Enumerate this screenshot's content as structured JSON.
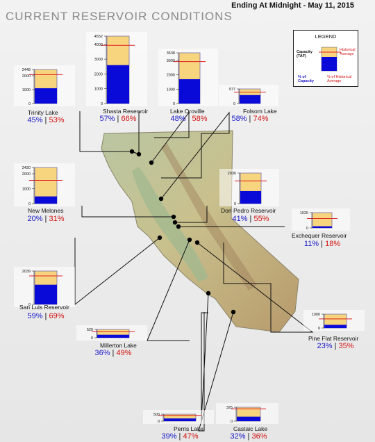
{
  "header": {
    "date_line": "Ending At Midnight - May 11, 2015",
    "title": "CURRENT RESERVOIR CONDITIONS"
  },
  "legend": {
    "title": "LEGEND",
    "capacity_label": "Capacity (TAF)",
    "historical_label": "Historical Average",
    "pct_capacity_label": "% of Capacity",
    "pct_historical_label": "% of Historical Average"
  },
  "colors": {
    "current": "#0a0ad8",
    "capacity": "#f7d57e",
    "historical_line": "#e02020",
    "capacity_text": "#1515c8",
    "historical_text": "#d21010"
  },
  "chart_data": {
    "type": "bar",
    "title": "CURRENT RESERVOIR CONDITIONS",
    "subtitle": "Ending At Midnight - May 11, 2015",
    "reservoirs": [
      {
        "name": "Trinity Lake",
        "capacity": 2448,
        "pct_capacity": 45,
        "pct_historical": 53,
        "ticks": [
          "2448",
          "2000",
          "1000",
          "0"
        ]
      },
      {
        "name": "Shasta Reservoir",
        "capacity": 4552,
        "pct_capacity": 57,
        "pct_historical": 66,
        "ticks": [
          "4552",
          "4000",
          "3000",
          "2000",
          "1000",
          "0"
        ]
      },
      {
        "name": "Lake Oroville",
        "capacity": 3538,
        "pct_capacity": 48,
        "pct_historical": 58,
        "ticks": [
          "3538",
          "3000",
          "2000",
          "1000",
          "0"
        ]
      },
      {
        "name": "Folsom Lake",
        "capacity": 977,
        "pct_capacity": 58,
        "pct_historical": 74,
        "ticks": [
          "977",
          "0"
        ]
      },
      {
        "name": "New Melones",
        "capacity": 2420,
        "pct_capacity": 20,
        "pct_historical": 31,
        "ticks": [
          "2420",
          "2000",
          "1000",
          "0"
        ]
      },
      {
        "name": "Don Pedro Reservoir",
        "capacity": 2030,
        "pct_capacity": 41,
        "pct_historical": 55,
        "ticks": [
          "2030",
          "0"
        ]
      },
      {
        "name": "Exchequer Reservoir",
        "capacity": 1025,
        "pct_capacity": 11,
        "pct_historical": 18,
        "ticks": [
          "1025",
          "0"
        ]
      },
      {
        "name": "San Luis Reservoir",
        "capacity": 2039,
        "pct_capacity": 59,
        "pct_historical": 69,
        "ticks": [
          "2039",
          "0"
        ]
      },
      {
        "name": "Millerton Lake",
        "capacity": 520,
        "pct_capacity": 36,
        "pct_historical": 49,
        "ticks": [
          "520",
          "0"
        ]
      },
      {
        "name": "Pine Flat Reservoir",
        "capacity": 1000,
        "pct_capacity": 23,
        "pct_historical": 35,
        "ticks": [
          "1000",
          "0"
        ]
      },
      {
        "name": "Perris Lake",
        "capacity": 500,
        "pct_capacity": 39,
        "pct_historical": 47,
        "ticks": [
          "500",
          "0"
        ]
      },
      {
        "name": "Castaic Lake",
        "capacity": 325,
        "pct_capacity": 32,
        "pct_historical": 36,
        "ticks": [
          "325",
          "0"
        ]
      }
    ]
  }
}
